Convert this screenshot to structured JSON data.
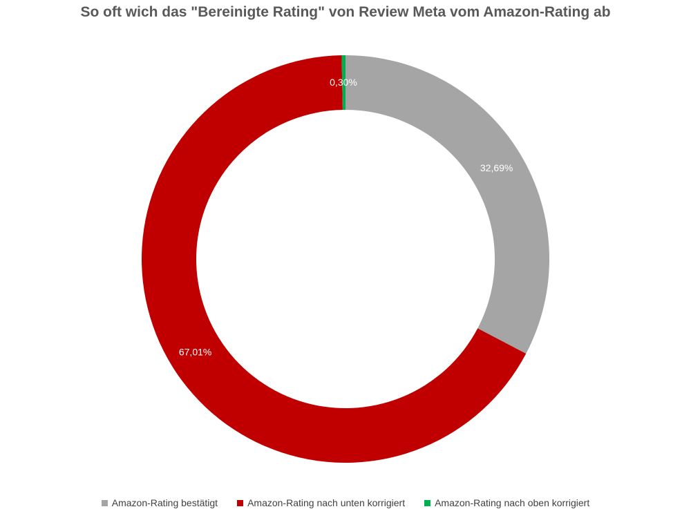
{
  "chart_data": {
    "type": "pie",
    "title": "So oft wich das \"Bereinigte Rating\" von Review Meta vom Amazon-Rating ab",
    "donut": true,
    "legend_position": "bottom",
    "slices": [
      {
        "name": "Amazon-Rating bestätigt",
        "value": 32.69,
        "label": "32,69%",
        "color": "#a5a5a5"
      },
      {
        "name": "Amazon-Rating nach unten korrigiert",
        "value": 67.01,
        "label": "67,01%",
        "color": "#c00000"
      },
      {
        "name": "Amazon-Rating nach oben korrigiert",
        "value": 0.3,
        "label": "0,30%",
        "color": "#00b050"
      }
    ]
  }
}
